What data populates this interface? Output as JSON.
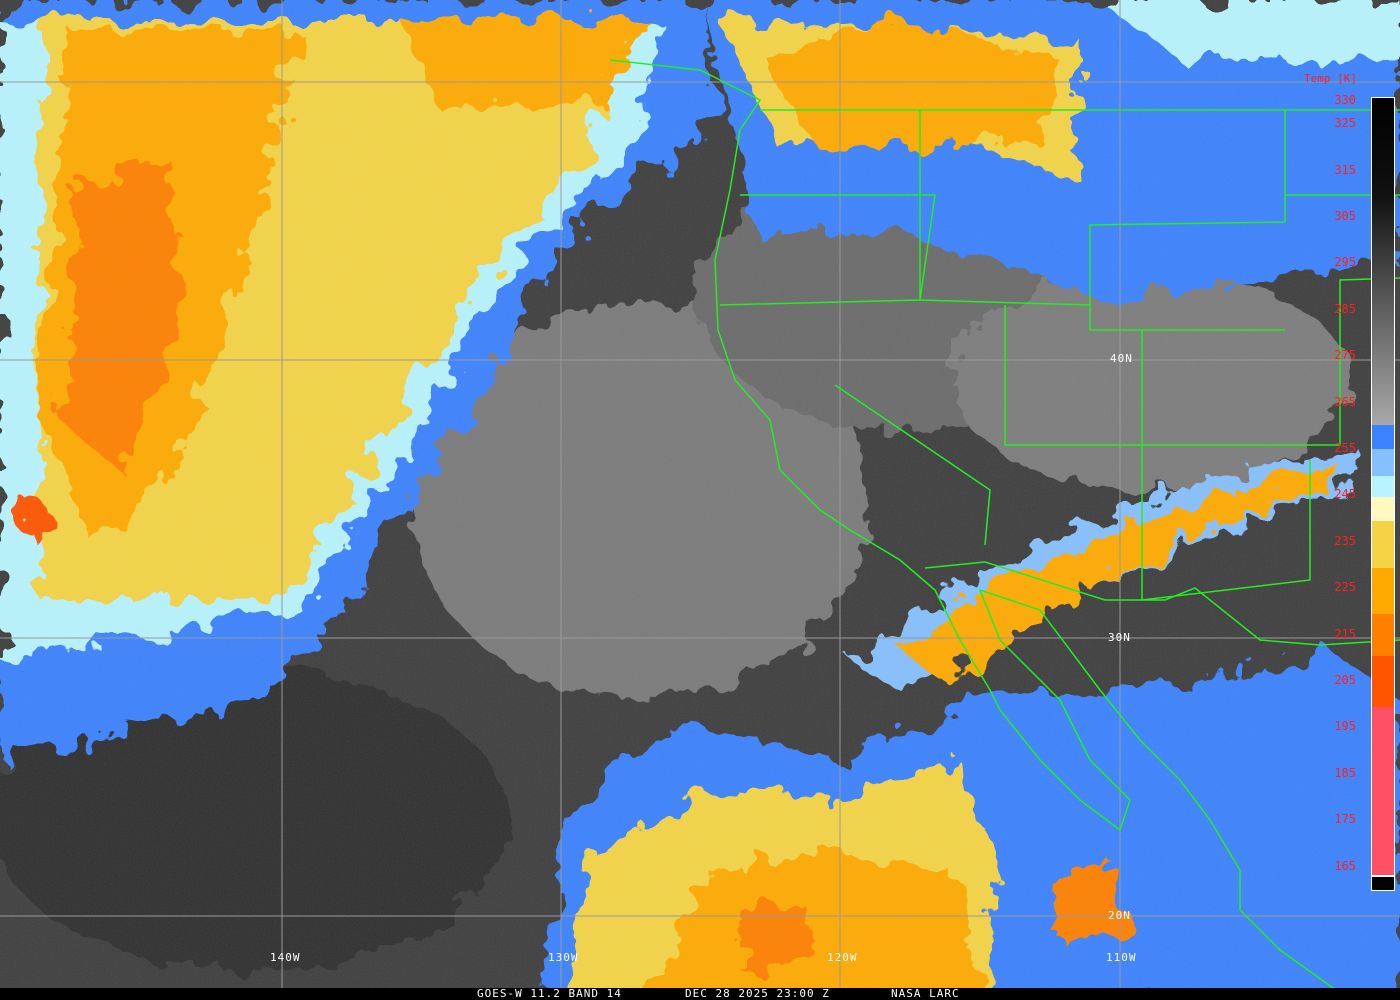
{
  "caption": {
    "satellite": "GOES-W 11.2 BAND 14",
    "datetime": "DEC 28 2025 23:00 Z",
    "source": "NASA LARC"
  },
  "colorbar": {
    "title": "Temp [K]",
    "ticks": [
      "330",
      "325",
      "315",
      "305",
      "295",
      "285",
      "275",
      "265",
      "255",
      "245",
      "235",
      "225",
      "215",
      "205",
      "195",
      "185",
      "175",
      "165"
    ],
    "range_k": [
      163,
      330
    ],
    "segments": [
      {
        "from": 330,
        "to": 260,
        "color": "gradient #000000-#a8a8a8"
      },
      {
        "from": 260,
        "to": 255,
        "color": "#3a82ff"
      },
      {
        "from": 255,
        "to": 249,
        "color": "#86c0ff"
      },
      {
        "from": 249,
        "to": 245,
        "color": "#b8f4ff"
      },
      {
        "from": 245,
        "to": 240,
        "color": "#fff8c0"
      },
      {
        "from": 240,
        "to": 229,
        "color": "#f4d444"
      },
      {
        "from": 229,
        "to": 220,
        "color": "#ffaa00"
      },
      {
        "from": 220,
        "to": 210,
        "color": "#ff8000"
      },
      {
        "from": 210,
        "to": 199,
        "color": "#ff5500"
      },
      {
        "from": 199,
        "to": 163,
        "color": "#ff5066"
      }
    ]
  },
  "grid": {
    "longitudes": [
      "140W",
      "130W",
      "120W",
      "110W"
    ],
    "latitudes": [
      "40N",
      "30N",
      "20N"
    ],
    "line_color": "#9a9a9a"
  },
  "borders_color": "#22ee22"
}
